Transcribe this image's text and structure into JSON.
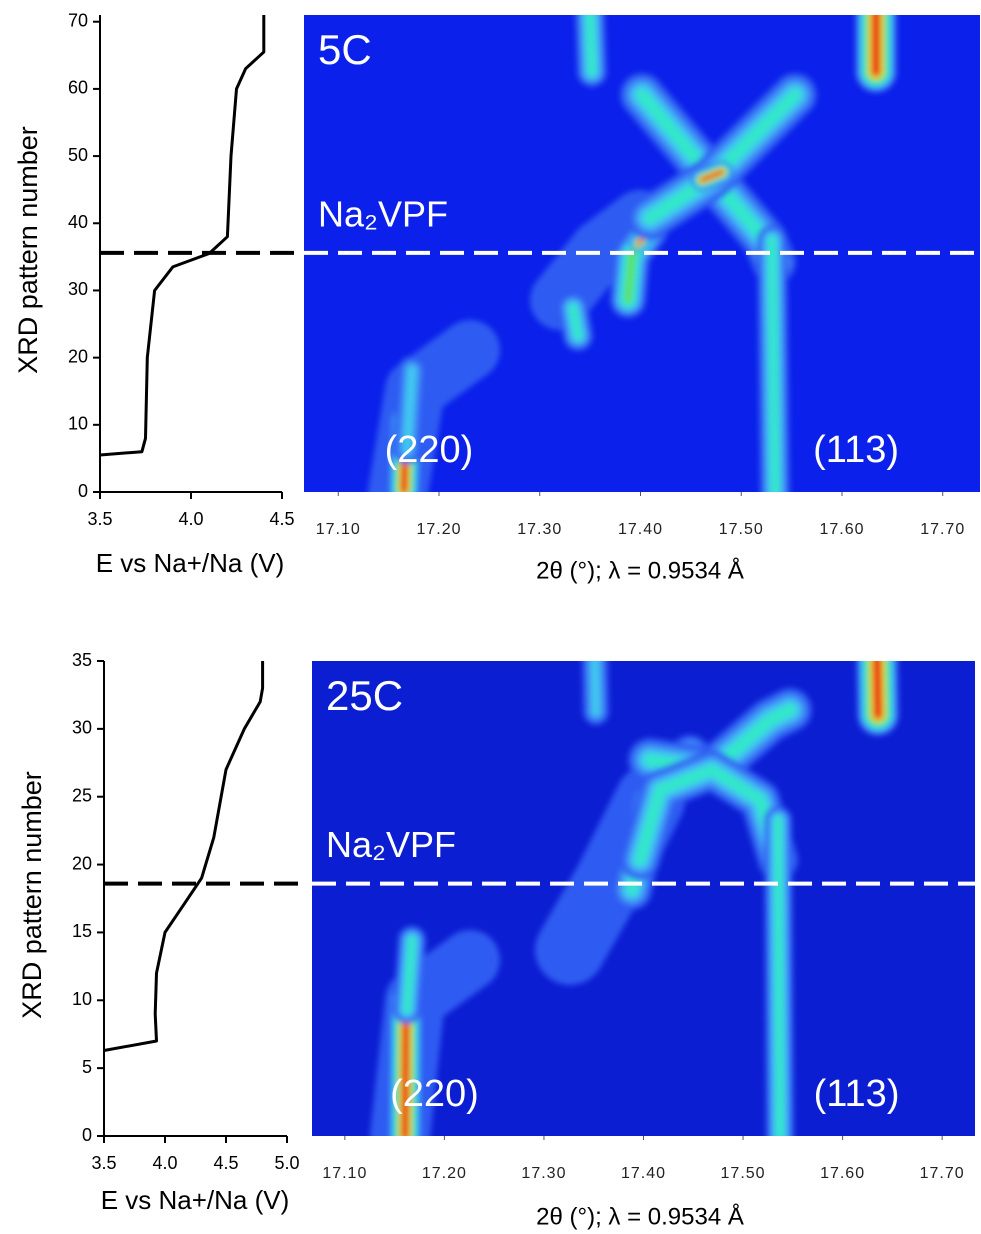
{
  "chart_data": [
    {
      "type": "line",
      "xlabel": "E vs Na+/Na (V)",
      "ylabel": "XRD pattern number",
      "x": [
        3.5,
        3.73,
        3.75,
        3.76,
        3.8,
        3.9,
        4.1,
        4.2,
        4.22,
        4.25,
        4.3,
        4.38,
        4.4,
        4.4
      ],
      "values": [
        5.5,
        6,
        8,
        20,
        30,
        33.5,
        35.5,
        38,
        50,
        60,
        63,
        65,
        65.5,
        71
      ],
      "color": "#000000",
      "xlim": [
        3.5,
        4.5
      ],
      "xticks": [
        3.5,
        {
          "value": 4.0,
          "label": "4.0"
        },
        4.5
      ],
      "ylim": [
        0,
        71
      ],
      "yticks": [
        0,
        10,
        20,
        30,
        40,
        50,
        60,
        70
      ],
      "hline": {
        "value": 35.6,
        "color": "#000000"
      }
    },
    {
      "type": "contour",
      "title": "5C",
      "xlabel": "2θ (°); λ = 0.9534 Å",
      "annotations": [
        "(220)",
        "(113)"
      ],
      "hline": {
        "value": 35.6,
        "label": "Na₂VPF",
        "color": "#ffffff"
      },
      "xlim": [
        17.066,
        17.737
      ],
      "xticks": [
        {
          "value": 17.1,
          "label": "17.10"
        },
        {
          "value": 17.2,
          "label": "17.20"
        },
        {
          "value": 17.3,
          "label": "17.30"
        },
        {
          "value": 17.4,
          "label": "17.40"
        },
        {
          "value": 17.5,
          "label": "17.50"
        },
        {
          "value": 17.6,
          "label": "17.60"
        },
        {
          "value": 17.7,
          "label": "17.70"
        }
      ],
      "ylim": [
        0,
        71
      ],
      "background": "#0b20ea"
    },
    {
      "type": "line",
      "xlabel": "E vs Na+/Na (V)",
      "ylabel": "XRD pattern number",
      "x": [
        3.5,
        3.93,
        3.92,
        3.93,
        4.0,
        4.15,
        4.3,
        4.4,
        4.5,
        4.65,
        4.78,
        4.8,
        4.8
      ],
      "values": [
        6.3,
        7,
        9,
        12,
        15,
        17,
        19,
        22,
        27,
        30,
        32,
        33,
        35
      ],
      "color": "#000000",
      "xlim": [
        3.5,
        5.0
      ],
      "xticks": [
        3.5,
        {
          "value": 4.0,
          "label": "4.0"
        },
        4.5,
        {
          "value": 5.0,
          "label": "5.0"
        }
      ],
      "ylim": [
        0,
        35
      ],
      "yticks": [
        0,
        5,
        10,
        15,
        20,
        25,
        30,
        35
      ],
      "hline": {
        "value": 18.6,
        "color": "#000000"
      }
    },
    {
      "type": "contour",
      "title": "25C",
      "xlabel": "2θ (°); λ = 0.9534 Å",
      "annotations": [
        "(220)",
        "(113)"
      ],
      "hline": {
        "value": 18.6,
        "label": "Na₂VPF",
        "color": "#ffffff"
      },
      "xlim": [
        17.067,
        17.733
      ],
      "xticks": [
        {
          "value": 17.1,
          "label": "17.10"
        },
        {
          "value": 17.2,
          "label": "17.20"
        },
        {
          "value": 17.3,
          "label": "17.30"
        },
        {
          "value": 17.4,
          "label": "17.40"
        },
        {
          "value": 17.5,
          "label": "17.50"
        },
        {
          "value": 17.6,
          "label": "17.60"
        },
        {
          "value": 17.7,
          "label": "17.70"
        }
      ],
      "ylim": [
        0,
        35
      ],
      "background": "#0c1ed2"
    }
  ]
}
